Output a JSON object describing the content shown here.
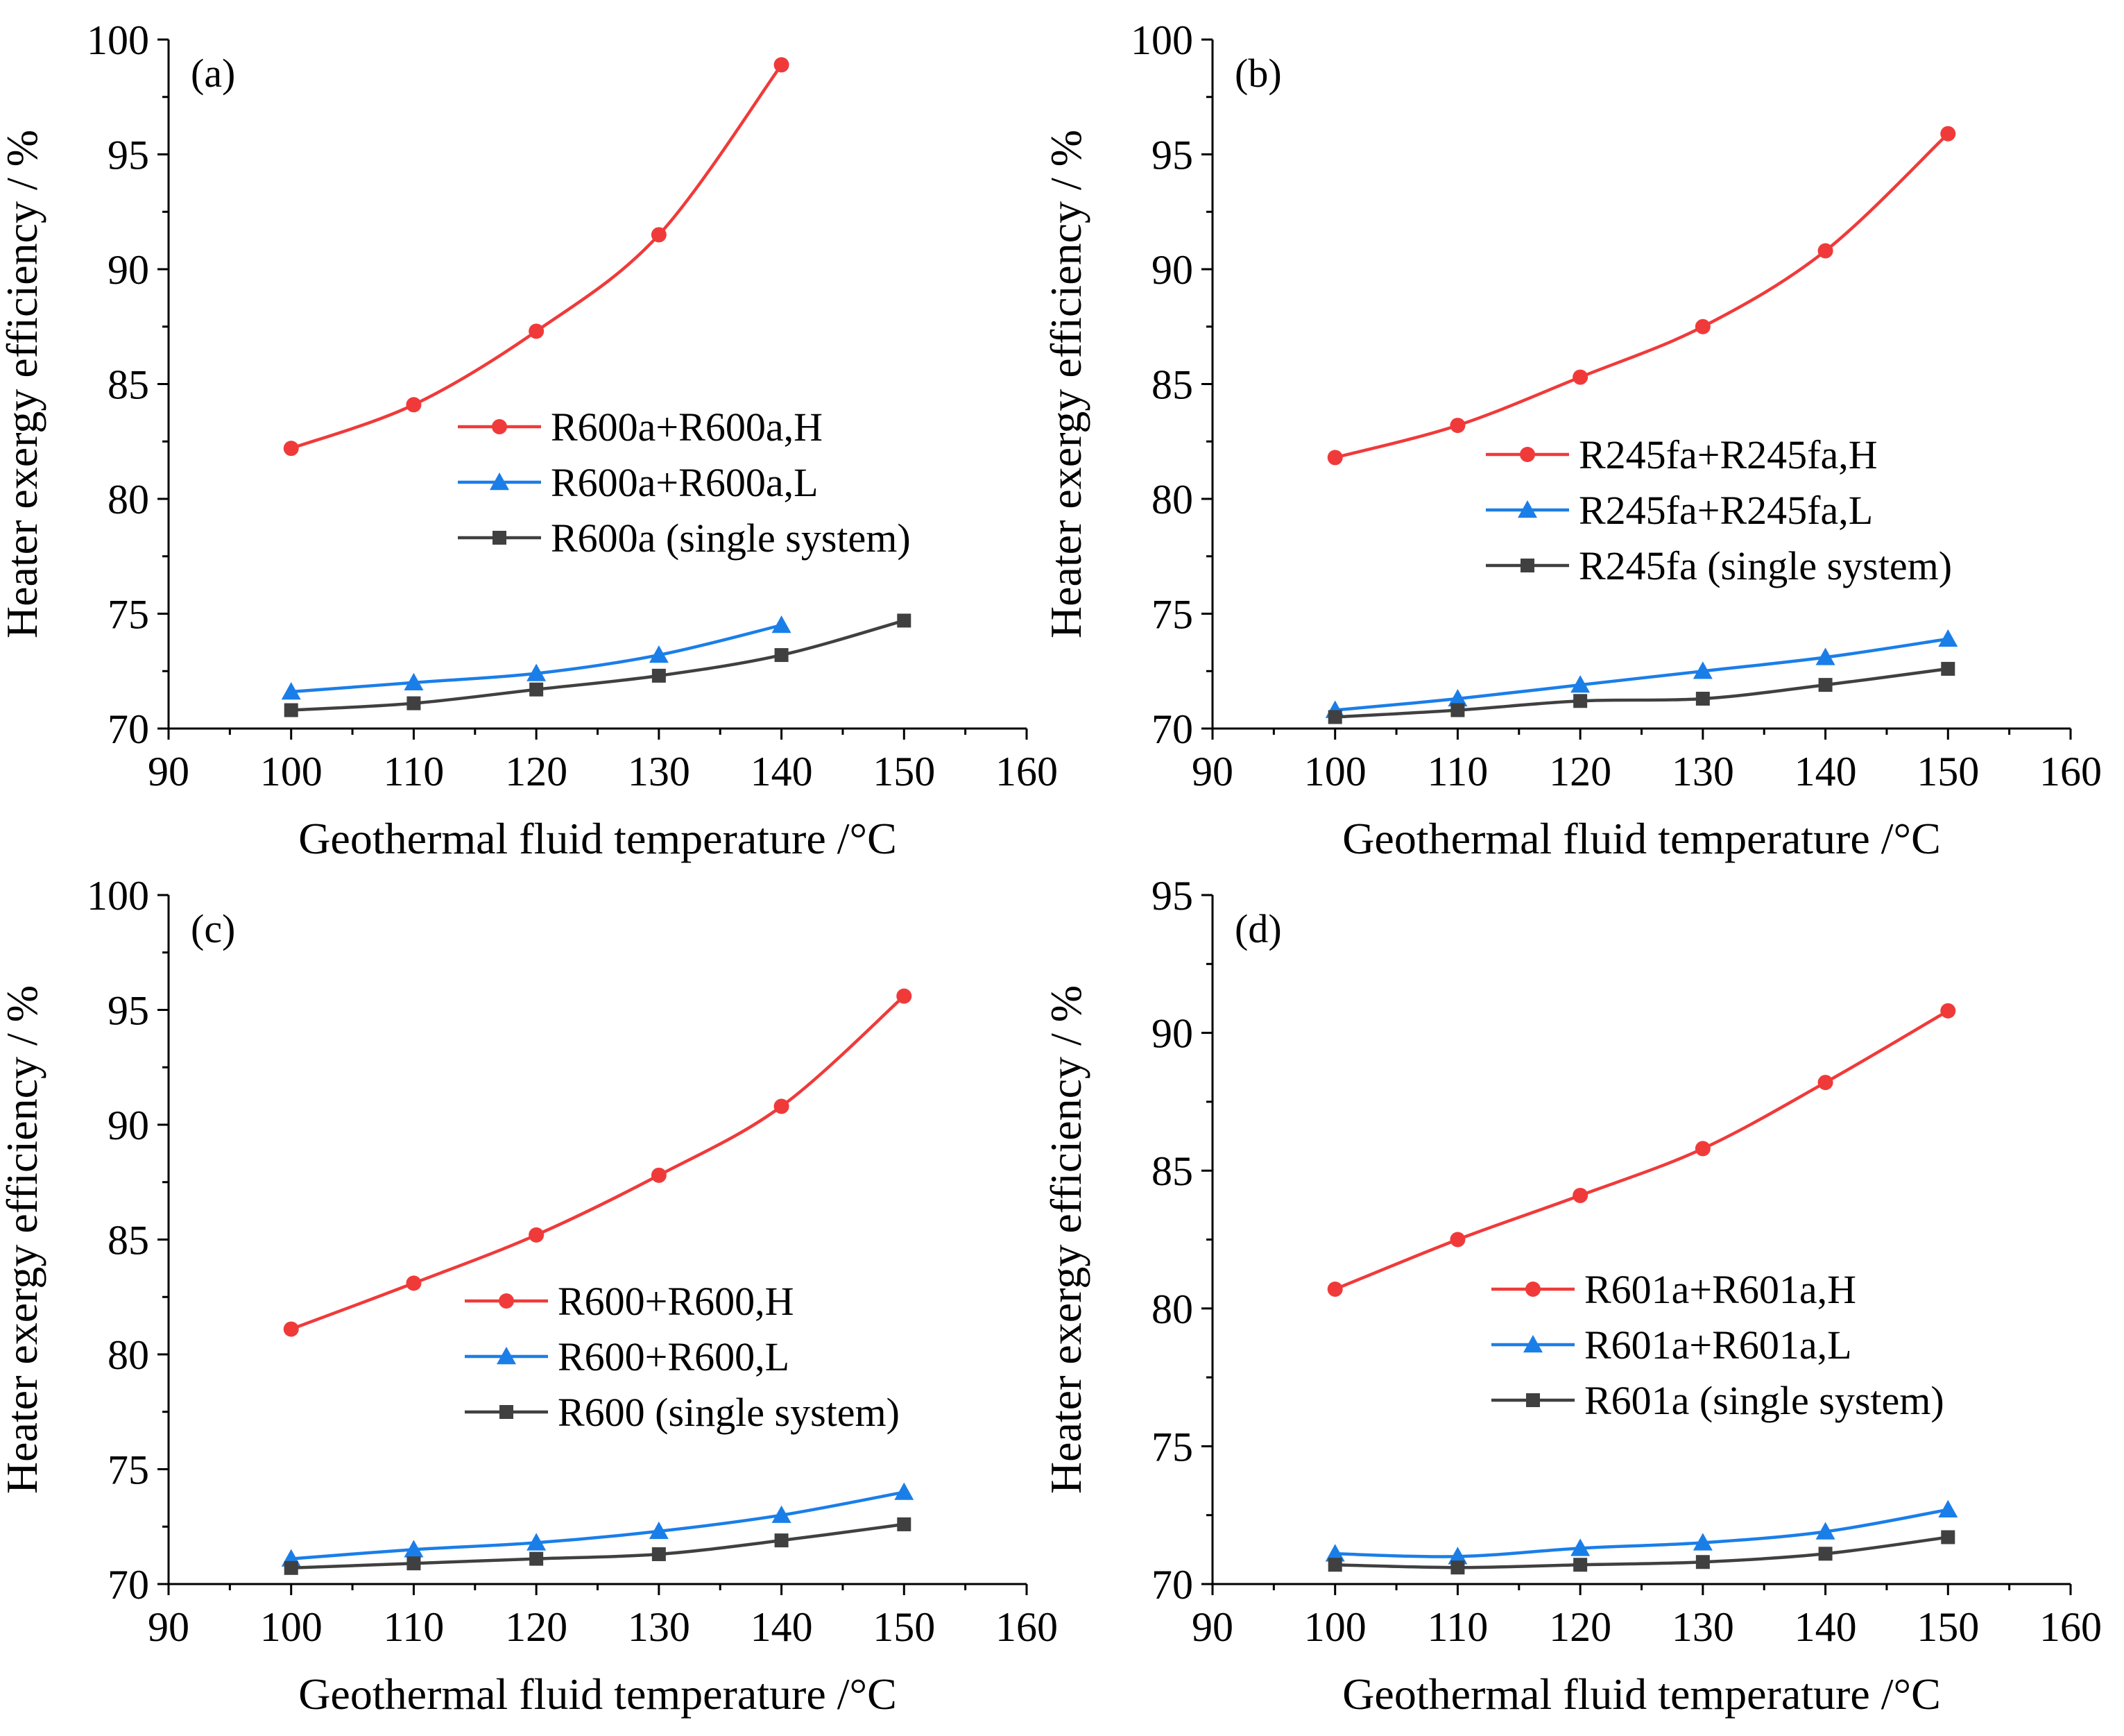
{
  "colors": {
    "H": "#f03a3a",
    "L": "#1a7ee8",
    "single": "#404040"
  },
  "chart_data": [
    {
      "type": "line",
      "panel_label": "(a)",
      "xlabel": "Geothermal fluid temperature /°C",
      "ylabel": "Heater exergy efficiency / %",
      "xlim": [
        90,
        160
      ],
      "ylim": [
        70,
        100
      ],
      "xticks": [
        90,
        100,
        110,
        120,
        130,
        140,
        150,
        160
      ],
      "yticks": [
        70,
        75,
        80,
        85,
        90,
        95,
        100
      ],
      "legend_position": "right-middle",
      "series": [
        {
          "name": "R600a+R600a,H",
          "marker": "circle",
          "color_key": "H",
          "x": [
            100,
            110,
            120,
            130,
            140
          ],
          "y": [
            82.2,
            84.1,
            87.3,
            91.5,
            98.9
          ]
        },
        {
          "name": "R600a+R600a,L",
          "marker": "triangle",
          "color_key": "L",
          "x": [
            100,
            110,
            120,
            130,
            140
          ],
          "y": [
            71.6,
            72.0,
            72.4,
            73.2,
            74.5
          ]
        },
        {
          "name": "R600a (single system)",
          "marker": "square",
          "color_key": "single",
          "x": [
            100,
            110,
            120,
            130,
            140,
            150
          ],
          "y": [
            70.8,
            71.1,
            71.7,
            72.3,
            73.2,
            74.7
          ]
        }
      ]
    },
    {
      "type": "line",
      "panel_label": "(b)",
      "xlabel": "Geothermal fluid temperature /°C",
      "ylabel": "Heater exergy efficiency / %",
      "xlim": [
        90,
        160
      ],
      "ylim": [
        70,
        100
      ],
      "xticks": [
        90,
        100,
        110,
        120,
        130,
        140,
        150,
        160
      ],
      "yticks": [
        70,
        75,
        80,
        85,
        90,
        95,
        100
      ],
      "legend_position": "right-middle",
      "series": [
        {
          "name": "R245fa+R245fa,H",
          "marker": "circle",
          "color_key": "H",
          "x": [
            100,
            110,
            120,
            130,
            140,
            150
          ],
          "y": [
            81.8,
            83.2,
            85.3,
            87.5,
            90.8,
            95.9
          ]
        },
        {
          "name": "R245fa+R245fa,L",
          "marker": "triangle",
          "color_key": "L",
          "x": [
            100,
            110,
            120,
            130,
            140,
            150
          ],
          "y": [
            70.8,
            71.3,
            71.9,
            72.5,
            73.1,
            73.9
          ]
        },
        {
          "name": "R245fa (single system)",
          "marker": "square",
          "color_key": "single",
          "x": [
            100,
            110,
            120,
            130,
            140,
            150
          ],
          "y": [
            70.5,
            70.8,
            71.2,
            71.3,
            71.9,
            72.6
          ]
        }
      ]
    },
    {
      "type": "line",
      "panel_label": "(c)",
      "xlabel": "Geothermal fluid temperature /°C",
      "ylabel": "Heater exergy efficiency / %",
      "xlim": [
        90,
        160
      ],
      "ylim": [
        70,
        100
      ],
      "xticks": [
        90,
        100,
        110,
        120,
        130,
        140,
        150,
        160
      ],
      "yticks": [
        70,
        75,
        80,
        85,
        90,
        95,
        100
      ],
      "legend_position": "right-middle",
      "series": [
        {
          "name": "R600+R600,H",
          "marker": "circle",
          "color_key": "H",
          "x": [
            100,
            110,
            120,
            130,
            140,
            150
          ],
          "y": [
            81.1,
            83.1,
            85.2,
            87.8,
            90.8,
            95.6
          ]
        },
        {
          "name": "R600+R600,L",
          "marker": "triangle",
          "color_key": "L",
          "x": [
            100,
            110,
            120,
            130,
            140,
            150
          ],
          "y": [
            71.1,
            71.5,
            71.8,
            72.3,
            73.0,
            74.0
          ]
        },
        {
          "name": "R600 (single system)",
          "marker": "square",
          "color_key": "single",
          "x": [
            100,
            110,
            120,
            130,
            140,
            150
          ],
          "y": [
            70.7,
            70.9,
            71.1,
            71.3,
            71.9,
            72.6
          ]
        }
      ]
    },
    {
      "type": "line",
      "panel_label": "(d)",
      "xlabel": "Geothermal fluid temperature /°C",
      "ylabel": "Heater exergy efficiency / %",
      "xlim": [
        90,
        160
      ],
      "ylim": [
        70,
        95
      ],
      "xticks": [
        90,
        100,
        110,
        120,
        130,
        140,
        150,
        160
      ],
      "yticks": [
        70,
        75,
        80,
        85,
        90,
        95
      ],
      "legend_position": "right-middle",
      "series": [
        {
          "name": "R601a+R601a,H",
          "marker": "circle",
          "color_key": "H",
          "x": [
            100,
            110,
            120,
            130,
            140,
            150
          ],
          "y": [
            80.7,
            82.5,
            84.1,
            85.8,
            88.2,
            90.8
          ]
        },
        {
          "name": "R601a+R601a,L",
          "marker": "triangle",
          "color_key": "L",
          "x": [
            100,
            110,
            120,
            130,
            140,
            150
          ],
          "y": [
            71.1,
            71.0,
            71.3,
            71.5,
            71.9,
            72.7
          ]
        },
        {
          "name": "R601a (single system)",
          "marker": "square",
          "color_key": "single",
          "x": [
            100,
            110,
            120,
            130,
            140,
            150
          ],
          "y": [
            70.7,
            70.6,
            70.7,
            70.8,
            71.1,
            71.7
          ]
        }
      ]
    }
  ]
}
